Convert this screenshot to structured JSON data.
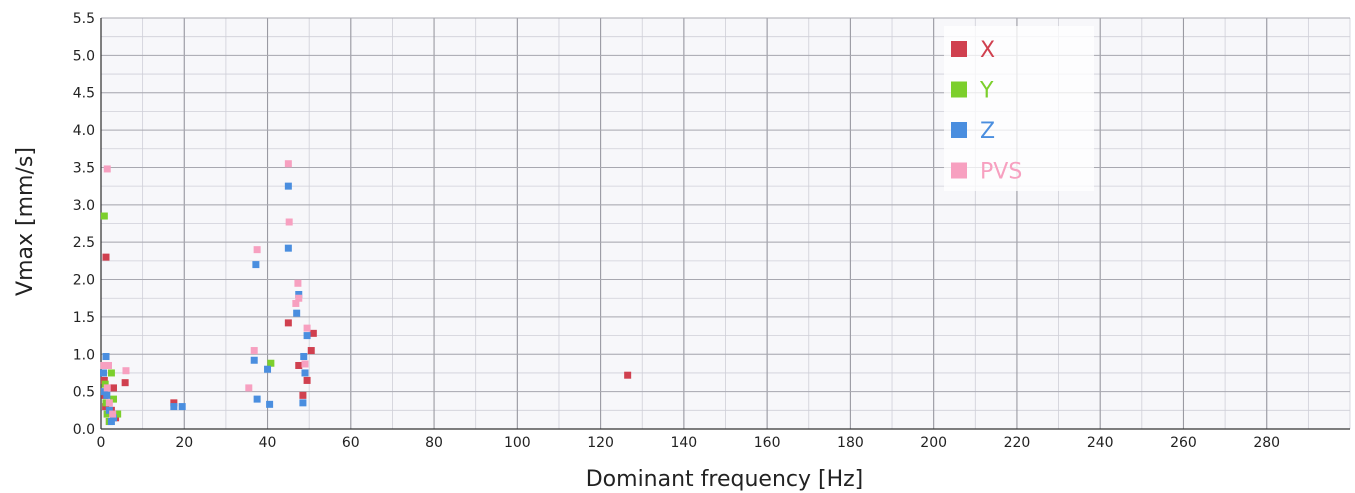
{
  "chart_data": {
    "type": "scatter",
    "title": "",
    "xlabel": "Dominant frequency [Hz]",
    "ylabel": "Vmax [mm/s]",
    "xlim": [
      0,
      300
    ],
    "ylim": [
      0,
      5.5
    ],
    "xticks": [
      0,
      20,
      40,
      60,
      80,
      100,
      120,
      140,
      160,
      180,
      200,
      220,
      240,
      260,
      280
    ],
    "yticks": [
      0.0,
      0.5,
      1.0,
      1.5,
      2.0,
      2.5,
      3.0,
      3.5,
      4.0,
      4.5,
      5.0,
      5.5
    ],
    "grid": true,
    "legend_position": "top-right",
    "series": [
      {
        "name": "X",
        "color": "#d0404f",
        "points": [
          [
            1.2,
            2.3
          ],
          [
            0.8,
            0.65
          ],
          [
            0.9,
            0.45
          ],
          [
            1.1,
            0.3
          ],
          [
            1.5,
            0.2
          ],
          [
            2.0,
            0.1
          ],
          [
            2.5,
            0.25
          ],
          [
            3.0,
            0.55
          ],
          [
            3.5,
            0.15
          ],
          [
            5.8,
            0.62
          ],
          [
            17.5,
            0.35
          ],
          [
            45.0,
            1.42
          ],
          [
            47.5,
            0.85
          ],
          [
            48.5,
            0.45
          ],
          [
            49.5,
            0.65
          ],
          [
            50.5,
            1.05
          ],
          [
            51.0,
            1.28
          ],
          [
            126.5,
            0.72
          ]
        ]
      },
      {
        "name": "Y",
        "color": "#7ccf2c",
        "points": [
          [
            0.8,
            2.85
          ],
          [
            1.0,
            0.6
          ],
          [
            1.2,
            0.35
          ],
          [
            1.5,
            0.2
          ],
          [
            2.0,
            0.1
          ],
          [
            2.5,
            0.75
          ],
          [
            3.0,
            0.4
          ],
          [
            4.0,
            0.2
          ],
          [
            40.8,
            0.88
          ]
        ]
      },
      {
        "name": "Z",
        "color": "#4a8edf",
        "points": [
          [
            0.6,
            0.75
          ],
          [
            0.8,
            0.5
          ],
          [
            1.2,
            0.97
          ],
          [
            1.4,
            0.45
          ],
          [
            2.0,
            0.25
          ],
          [
            2.5,
            0.1
          ],
          [
            3.0,
            0.15
          ],
          [
            17.5,
            0.3
          ],
          [
            19.5,
            0.3
          ],
          [
            36.8,
            0.92
          ],
          [
            37.2,
            2.2
          ],
          [
            37.5,
            0.4
          ],
          [
            40.0,
            0.8
          ],
          [
            40.5,
            0.33
          ],
          [
            45.0,
            3.25
          ],
          [
            45.0,
            2.42
          ],
          [
            47.0,
            1.55
          ],
          [
            47.5,
            1.8
          ],
          [
            48.5,
            0.35
          ],
          [
            48.7,
            0.97
          ],
          [
            49.0,
            0.75
          ],
          [
            49.5,
            1.25
          ]
        ]
      },
      {
        "name": "PVS",
        "color": "#f7a0c0",
        "points": [
          [
            1.5,
            3.48
          ],
          [
            0.7,
            0.85
          ],
          [
            1.8,
            0.85
          ],
          [
            1.5,
            0.55
          ],
          [
            2.0,
            0.35
          ],
          [
            2.8,
            0.2
          ],
          [
            6.0,
            0.78
          ],
          [
            35.5,
            0.55
          ],
          [
            36.8,
            1.05
          ],
          [
            37.5,
            2.4
          ],
          [
            45.0,
            3.55
          ],
          [
            45.2,
            2.77
          ],
          [
            46.8,
            1.68
          ],
          [
            47.3,
            1.95
          ],
          [
            47.5,
            1.75
          ],
          [
            49.0,
            0.87
          ],
          [
            49.5,
            1.35
          ]
        ]
      }
    ]
  }
}
